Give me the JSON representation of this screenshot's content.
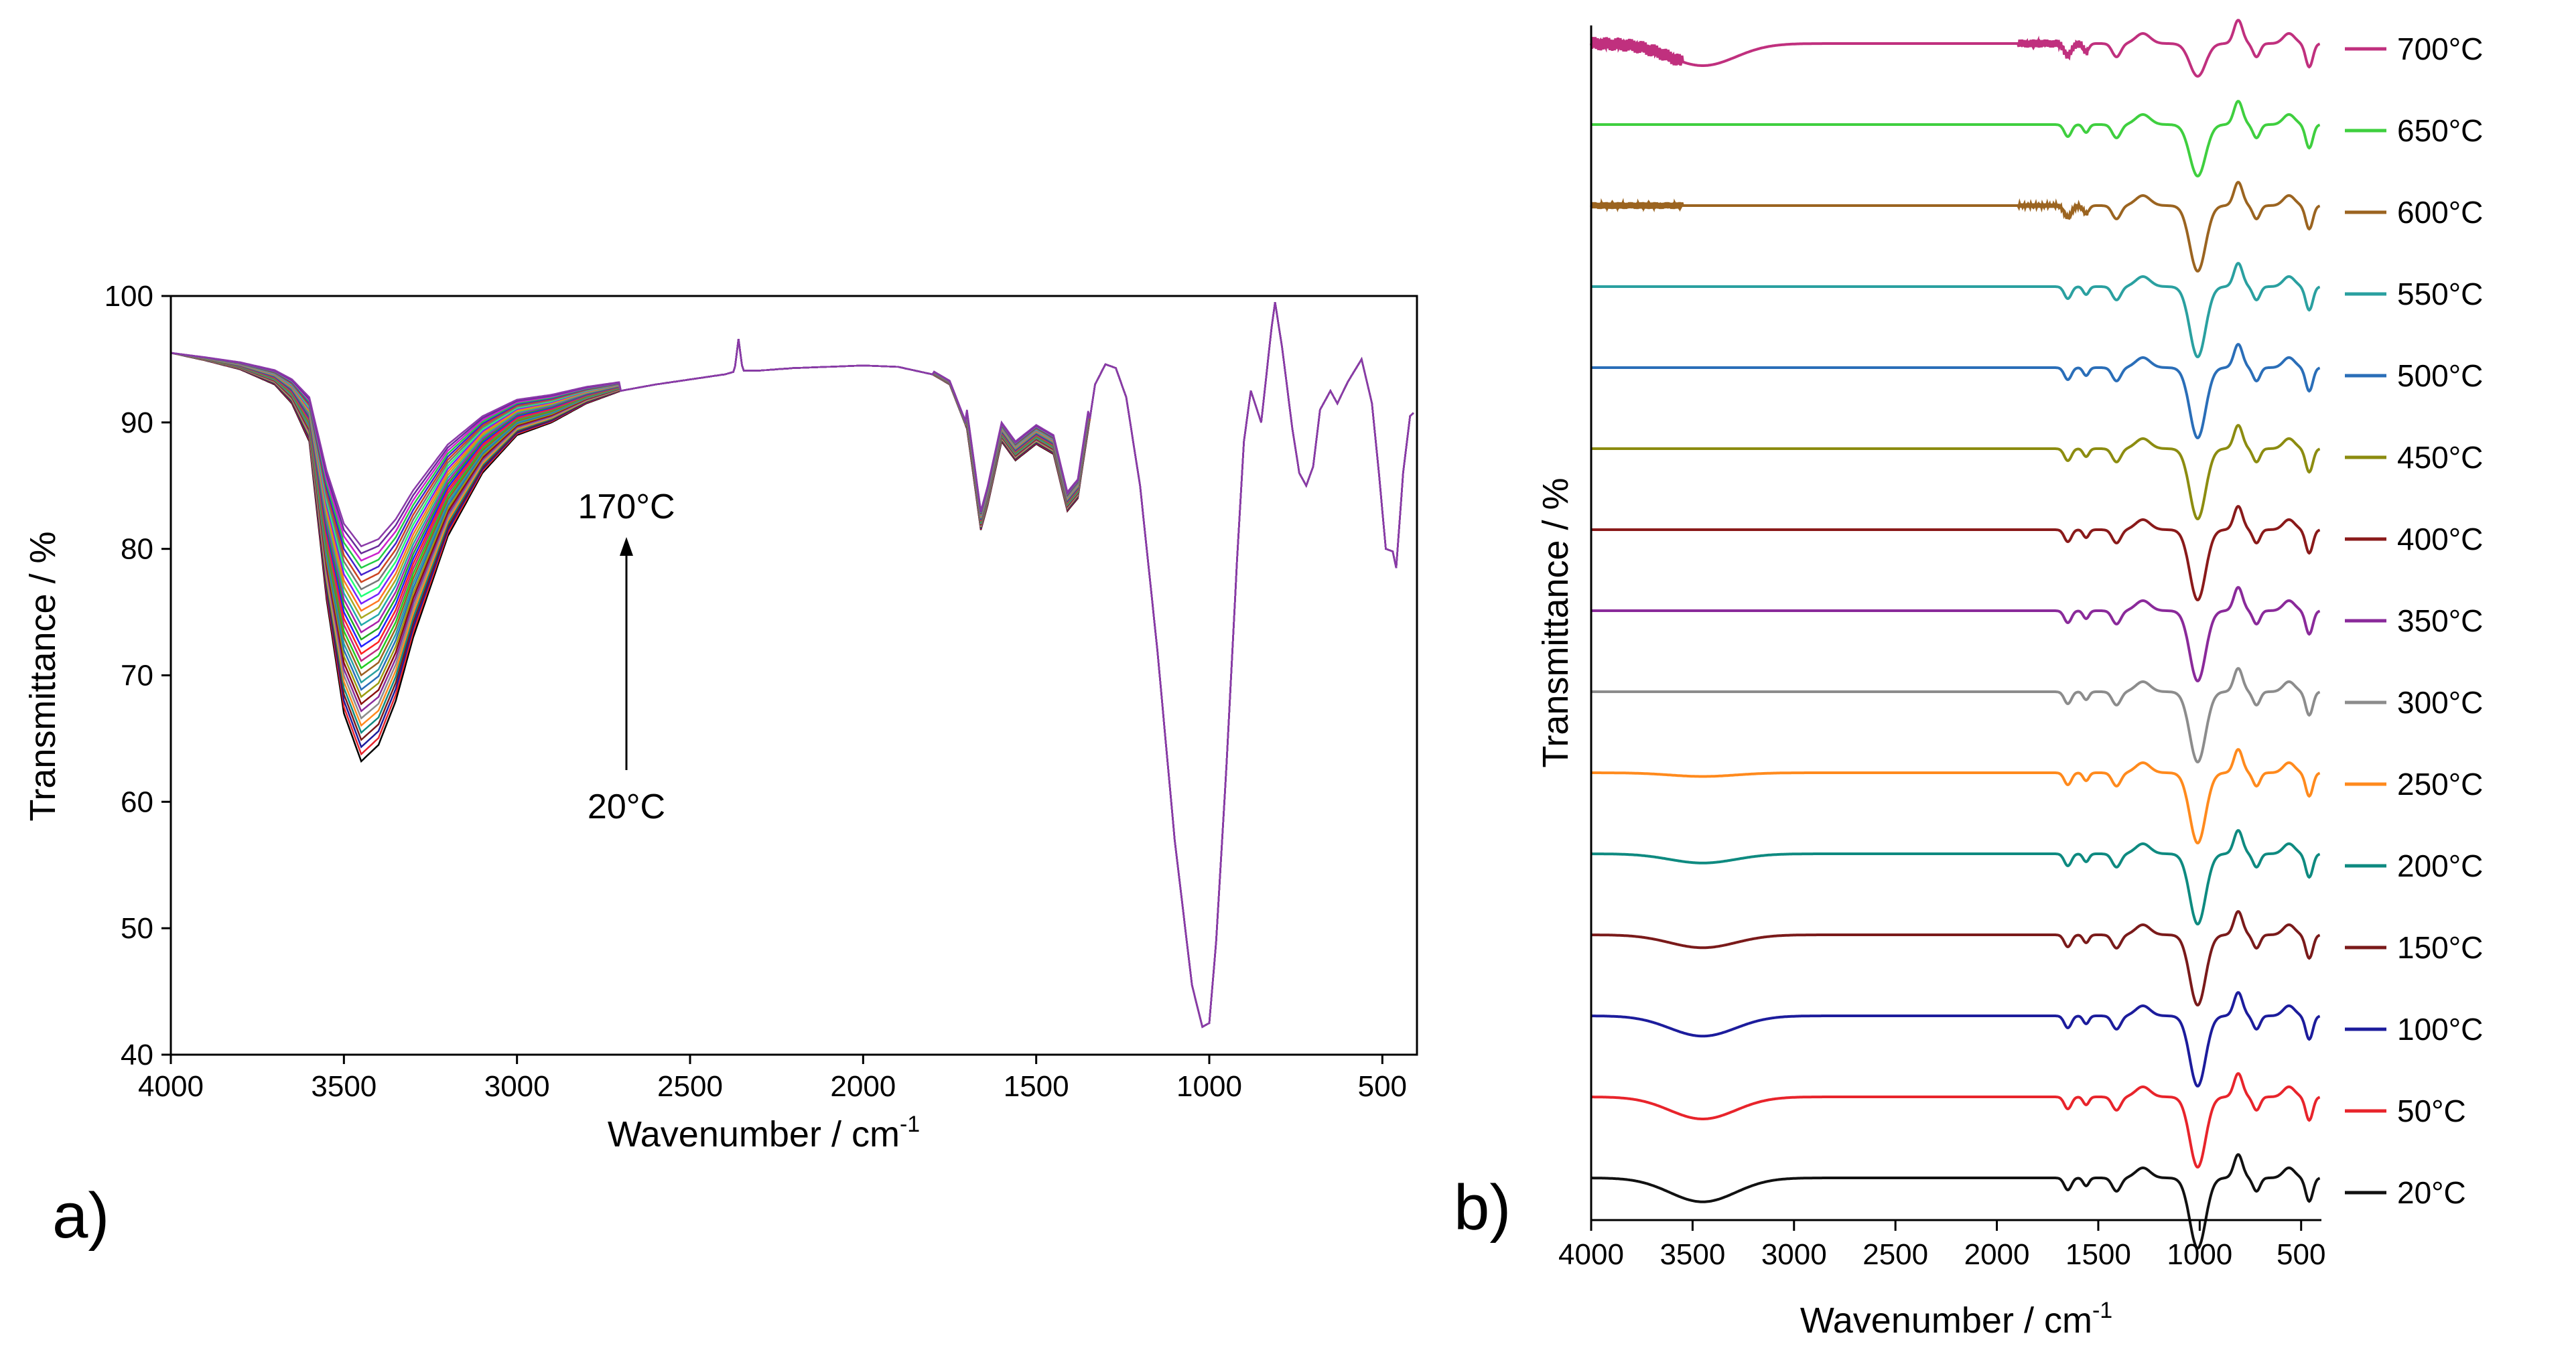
{
  "chart_data": [
    {
      "panel_label": "a)",
      "type": "line",
      "xlabel": "Wavenumber  / cm",
      "xlabel_sup": "-1",
      "ylabel": "Transmittance  / %",
      "xlim": [
        4000,
        400
      ],
      "ylim": [
        40,
        100
      ],
      "x_ticks": [
        4000,
        3500,
        3000,
        2500,
        2000,
        1500,
        1000,
        500
      ],
      "y_ticks": [
        40,
        50,
        60,
        70,
        80,
        90,
        100
      ],
      "x_tick_labels": [
        "4000",
        "3500",
        "3000",
        "2500",
        "2000",
        "1500",
        "1000",
        "500"
      ],
      "y_tick_labels": [
        "40",
        "50",
        "60",
        "70",
        "80",
        "90",
        "100"
      ],
      "annotation_top": "170°C",
      "annotation_bottom": "20°C",
      "series_count": 31,
      "series_temperatures_start": 20,
      "series_temperatures_step": 5,
      "band_minimum_first": 63,
      "band_minimum_last": 80.5,
      "series_colors": [
        "#000000",
        "#e8242b",
        "#1c1c9c",
        "#7a1a1a",
        "#0e8a80",
        "#ff8a1d",
        "#8c8c8c",
        "#8a2a9a",
        "#8a1010",
        "#9b9b10",
        "#2a6eb8",
        "#2aa0a0",
        "#9b6020",
        "#22cc22",
        "#c02a7f",
        "#ff2222",
        "#2222ff",
        "#22aa22",
        "#aa22aa",
        "#22aaaa",
        "#aaaa22",
        "#ff7722",
        "#7722ff",
        "#22ff77",
        "#777777",
        "#cc4422",
        "#4422cc",
        "#22cc44",
        "#cc22cc",
        "#6a2a9a",
        "#8a3aa8"
      ],
      "reference_points": {
        "x": [
          4000,
          3900,
          3800,
          3700,
          3650,
          3600,
          3550,
          3500,
          3450,
          3400,
          3350,
          3300,
          3200,
          3100,
          3000,
          2950,
          2900,
          2800,
          2700,
          2600,
          2500,
          2400,
          2360,
          2300,
          2200,
          2000,
          1900,
          1800,
          1750,
          1700,
          1660,
          1640,
          1600,
          1560,
          1500,
          1450,
          1410,
          1380,
          1330,
          1300,
          1270,
          1240,
          1200,
          1150,
          1100,
          1050,
          1020,
          1000,
          980,
          950,
          920,
          900,
          880,
          850,
          820,
          810,
          790,
          760,
          740,
          720,
          700,
          680,
          650,
          630,
          600,
          560,
          530,
          510,
          490,
          470,
          460,
          440,
          420,
          400
        ],
        "y": [
          95.5,
          94.9,
          94.2,
          93.0,
          91.5,
          88.5,
          76,
          67,
          63.2,
          64.5,
          68,
          73,
          81,
          86,
          89,
          89.5,
          90,
          91.5,
          92.5,
          93,
          93.4,
          93.8,
          94.1,
          94.1,
          94.3,
          94.5,
          94.4,
          93.8,
          93,
          89.5,
          81.5,
          83.5,
          88.5,
          87,
          88.3,
          87.5,
          83,
          84,
          93,
          94.6,
          94.3,
          92,
          85,
          72,
          57,
          45.5,
          42.2,
          42.5,
          49,
          63,
          79,
          88.5,
          92.5,
          90,
          97.5,
          99.5,
          96,
          89.5,
          86,
          85,
          86.5,
          91,
          92.5,
          91.5,
          93.2,
          95,
          91.5,
          86,
          80,
          79.8,
          78.5,
          86,
          90.5,
          91
        ]
      }
    },
    {
      "panel_label": "b)",
      "type": "line",
      "xlabel": "Wavenumber / cm",
      "xlabel_sup": "-1",
      "ylabel": "Transmittance / %",
      "xlim": [
        4000,
        400
      ],
      "x_ticks": [
        4000,
        3500,
        3000,
        2500,
        2000,
        1500,
        1000,
        500
      ],
      "x_tick_labels": [
        "4000",
        "3500",
        "3000",
        "2500",
        "2000",
        "1500",
        "1000",
        "500"
      ],
      "offset_stacked": true,
      "series": [
        {
          "name": "700°C",
          "color": "#c0307e",
          "baseline": 0.032,
          "band_depth": 0.6,
          "noise": 10,
          "dip": 0.35
        },
        {
          "name": "650°C",
          "color": "#3fcf3f",
          "baseline": 0.079,
          "band_depth": 0,
          "noise": 0,
          "dip": 0.55
        },
        {
          "name": "600°C",
          "color": "#9b6420",
          "baseline": 0.172,
          "band_depth": 0,
          "noise": 5,
          "dip": 0.7
        },
        {
          "name": "550°C",
          "color": "#2aa0a0",
          "baseline": 0.249,
          "band_depth": 0,
          "noise": 0,
          "dip": 0.75
        },
        {
          "name": "500°C",
          "color": "#2a6eb8",
          "baseline": 0.332,
          "band_depth": 0,
          "noise": 0,
          "dip": 0.75
        },
        {
          "name": "450°C",
          "color": "#8c8c10",
          "baseline": 0.411,
          "band_depth": 0,
          "noise": 0,
          "dip": 0.75
        },
        {
          "name": "400°C",
          "color": "#8a1a1a",
          "baseline": 0.489,
          "band_depth": 0,
          "noise": 0,
          "dip": 0.75
        },
        {
          "name": "350°C",
          "color": "#8a2a9a",
          "baseline": 0.571,
          "band_depth": 0,
          "noise": 0,
          "dip": 0.75
        },
        {
          "name": "300°C",
          "color": "#8c8c8c",
          "baseline": 0.653,
          "band_depth": 0,
          "noise": 0,
          "dip": 0.75
        },
        {
          "name": "250°C",
          "color": "#ff8a1d",
          "baseline": 0.742,
          "band_depth": 0.1,
          "noise": 0,
          "dip": 0.75
        },
        {
          "name": "200°C",
          "color": "#0e8a80",
          "baseline": 0.826,
          "band_depth": 0.25,
          "noise": 0,
          "dip": 0.75
        },
        {
          "name": "150°C",
          "color": "#7a1a1a",
          "baseline": 0.912,
          "band_depth": 0.35,
          "noise": 0,
          "dip": 0.75
        },
        {
          "name": "100°C",
          "color": "#1c1c9c",
          "baseline": 1.0,
          "band_depth": 0.55,
          "noise": 0,
          "dip": 0.75
        },
        {
          "name": "50°C",
          "color": "#e8242b",
          "baseline": 1.09,
          "band_depth": 0.6,
          "noise": 0,
          "dip": 0.75
        },
        {
          "name": "20°C",
          "color": "#111111",
          "baseline": 1.172,
          "band_depth": 0.65,
          "noise": 0,
          "dip": 0.75
        }
      ]
    }
  ]
}
